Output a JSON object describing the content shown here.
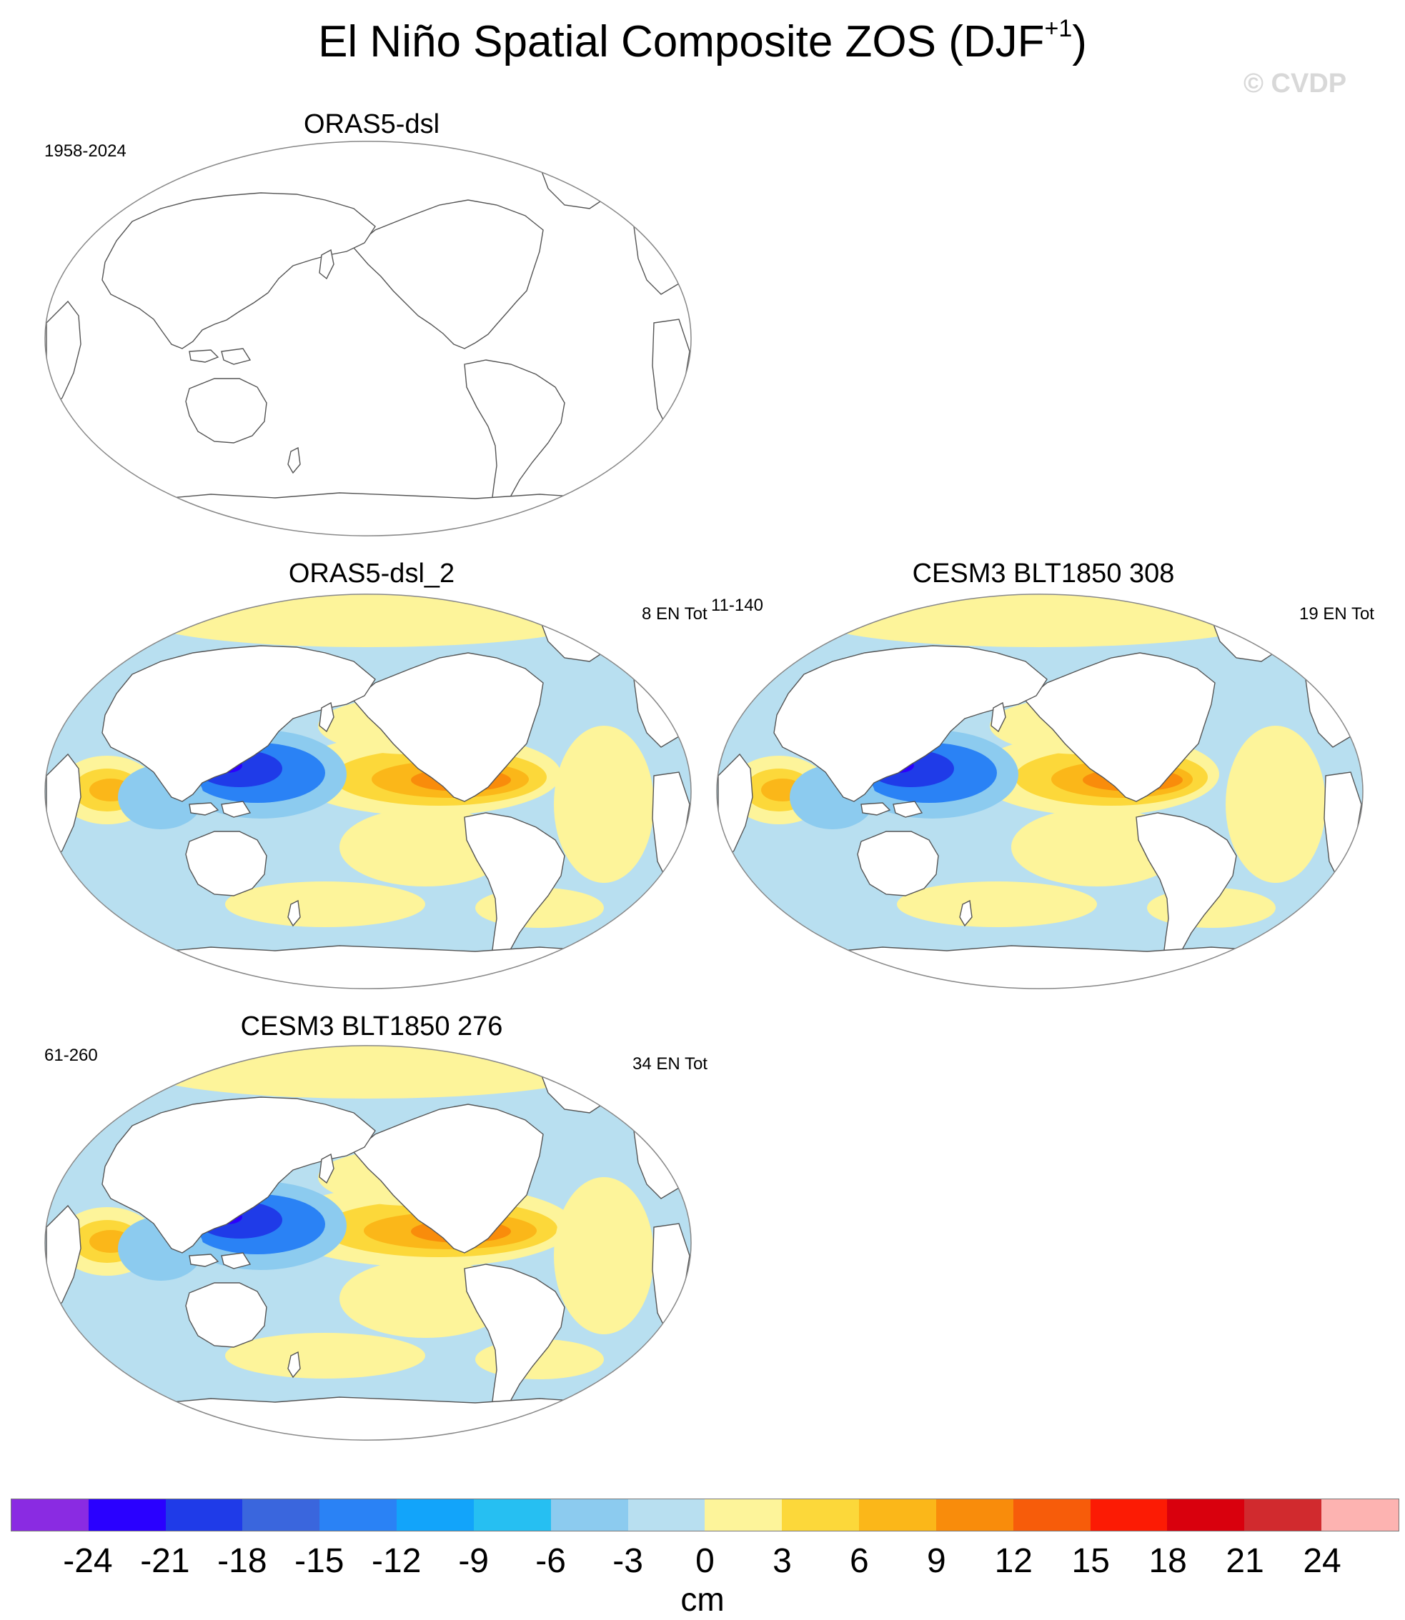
{
  "figure": {
    "title": "El Niño Spatial Composite ZOS (DJF",
    "title_sup": "+1",
    "title_close": ")",
    "copyright": "© CVDP"
  },
  "panels": [
    {
      "id": "p1",
      "title": "ORAS5-dsl",
      "left_note": "1958-2024",
      "right_note": "",
      "filled": false
    },
    {
      "id": "p2",
      "title": "ORAS5-dsl_2",
      "left_note": "",
      "right_note": "8 EN Tot",
      "filled": true
    },
    {
      "id": "p3",
      "title": "CESM3 BLT1850 308",
      "left_note": "11-140",
      "right_note": "19 EN Tot",
      "filled": true
    },
    {
      "id": "p4",
      "title": "CESM3 BLT1850 276",
      "left_note": "61-260",
      "right_note": "34 EN Tot",
      "filled": true
    }
  ],
  "colorbar": {
    "unit": "cm",
    "ticks": [
      "-24",
      "-21",
      "-18",
      "-15",
      "-12",
      "-9",
      "-6",
      "-3",
      "0",
      "3",
      "6",
      "9",
      "12",
      "15",
      "18",
      "21",
      "24"
    ],
    "colors": [
      "#8a2be2",
      "#2a00ff",
      "#1f3be8",
      "#3a66dd",
      "#2a82f5",
      "#12a4fa",
      "#26bff2",
      "#8ccbef",
      "#b8dff0",
      "#fdf49a",
      "#fcd83a",
      "#fbb719",
      "#f98c0b",
      "#f75c0a",
      "#fc1b04",
      "#d9000d",
      "#d12a2e",
      "#fdb3b1"
    ]
  },
  "map_colors": {
    "neg_light": "#b8dff0",
    "neg_mid": "#8ccbef",
    "neg_strong": "#2a82f5",
    "neg_deep": "#1f3be8",
    "neg_core": "#2a00ff",
    "pos_light": "#fdf49a",
    "pos_mid": "#fcd83a",
    "pos_strong": "#fbb719",
    "pos_deep": "#f98c0b",
    "pos_core": "#f75c0a",
    "land": "#ffffff",
    "outline": "#888888",
    "coast": "#555555"
  }
}
